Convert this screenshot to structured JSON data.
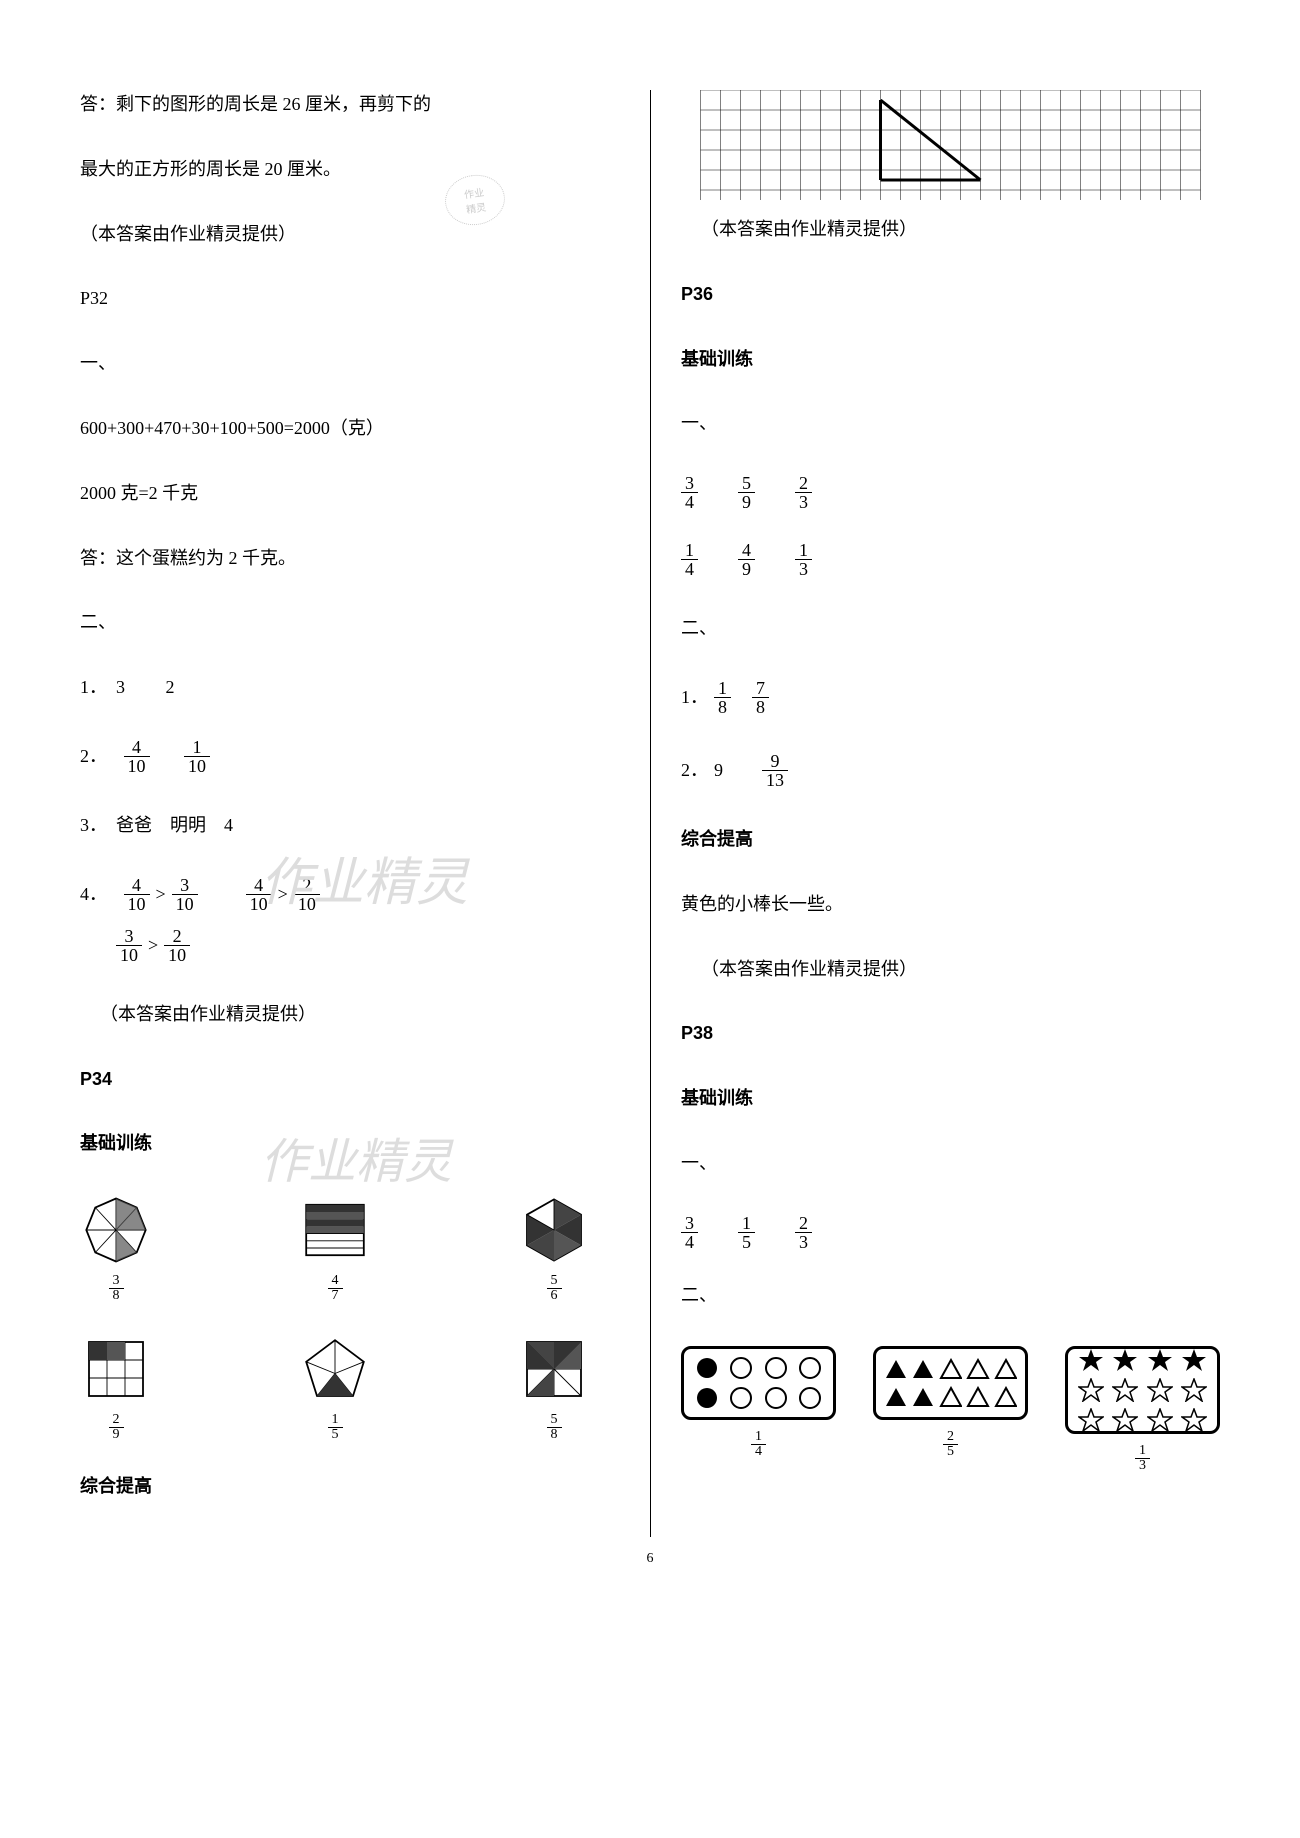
{
  "left": {
    "l1": "答：剩下的图形的周长是 26 厘米，再剪下的",
    "l2": "最大的正方形的周长是 20 厘米。",
    "credit1": "（本答案由作业精灵提供）",
    "p32": "P32",
    "one": "一、",
    "eq1": "600+300+470+30+100+500=2000（克）",
    "eq2": "2000 克=2 千克",
    "ans": "答：这个蛋糕约为 2 千克。",
    "two": "二、",
    "q1_pre": "1．",
    "q1_a": "3",
    "q1_b": "2",
    "q2_pre": "2．",
    "q2_f1": {
      "n": "4",
      "d": "10"
    },
    "q2_f2": {
      "n": "1",
      "d": "10"
    },
    "q3_pre": "3．",
    "q3_a": "爸爸",
    "q3_b": "明明",
    "q3_c": "4",
    "q4_pre": "4．",
    "q4_a1": {
      "n": "4",
      "d": "10"
    },
    "q4_a2": {
      "n": "3",
      "d": "10"
    },
    "q4_b1": {
      "n": "4",
      "d": "10"
    },
    "q4_b2": {
      "n": "2",
      "d": "10"
    },
    "q4_c1": {
      "n": "3",
      "d": "10"
    },
    "q4_c2": {
      "n": "2",
      "d": "10"
    },
    "gt": ">",
    "credit2": "（本答案由作业精灵提供）",
    "p34": "P34",
    "basic": "基础训练",
    "shape_fracs_1": [
      {
        "n": "3",
        "d": "8"
      },
      {
        "n": "4",
        "d": "7"
      },
      {
        "n": "5",
        "d": "6"
      }
    ],
    "shape_fracs_2": [
      {
        "n": "2",
        "d": "9"
      },
      {
        "n": "1",
        "d": "5"
      },
      {
        "n": "5",
        "d": "8"
      }
    ],
    "comp": "综合提高"
  },
  "right": {
    "credit1": "（本答案由作业精灵提供）",
    "p36": "P36",
    "basic1": "基础训练",
    "one": "一、",
    "row1": [
      {
        "n": "3",
        "d": "4"
      },
      {
        "n": "5",
        "d": "9"
      },
      {
        "n": "2",
        "d": "3"
      }
    ],
    "row2": [
      {
        "n": "1",
        "d": "4"
      },
      {
        "n": "4",
        "d": "9"
      },
      {
        "n": "1",
        "d": "3"
      }
    ],
    "two": "二、",
    "q1_pre": "1．",
    "q1_f1": {
      "n": "1",
      "d": "8"
    },
    "q1_f2": {
      "n": "7",
      "d": "8"
    },
    "q2_pre": "2．",
    "q2_a": "9",
    "q2_f": {
      "n": "9",
      "d": "13"
    },
    "comp1": "综合提高",
    "yellow": "黄色的小棒长一些。",
    "credit2": "（本答案由作业精灵提供）",
    "p38": "P38",
    "basic2": "基础训练",
    "one2": "一、",
    "row3": [
      {
        "n": "3",
        "d": "4"
      },
      {
        "n": "1",
        "d": "5"
      },
      {
        "n": "2",
        "d": "3"
      }
    ],
    "two2": "二、",
    "set_fracs": [
      {
        "n": "1",
        "d": "4"
      },
      {
        "n": "2",
        "d": "5"
      },
      {
        "n": "1",
        "d": "3"
      }
    ]
  },
  "watermark": "作业精灵",
  "stamp1": "作业",
  "stamp2": "精灵",
  "page_num": "6"
}
